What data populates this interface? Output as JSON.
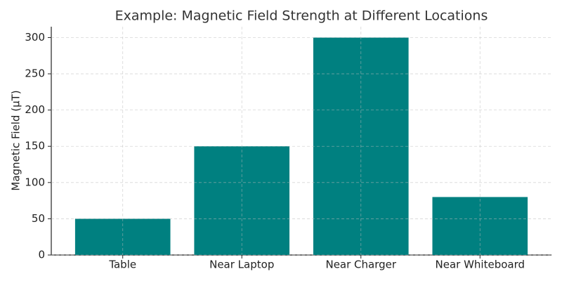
{
  "chart_data": {
    "type": "bar",
    "title": "Example: Magnetic Field Strength at Different Locations",
    "y_label": "Magnetic Field (µT)",
    "categories": [
      "Table",
      "Near Laptop",
      "Near Charger",
      "Near Whiteboard"
    ],
    "values": [
      50,
      150,
      300,
      80
    ],
    "color": "#008080",
    "ylim": [
      0,
      315
    ],
    "yticks": [
      0,
      50,
      100,
      150,
      200,
      250,
      300
    ],
    "grid": true
  }
}
